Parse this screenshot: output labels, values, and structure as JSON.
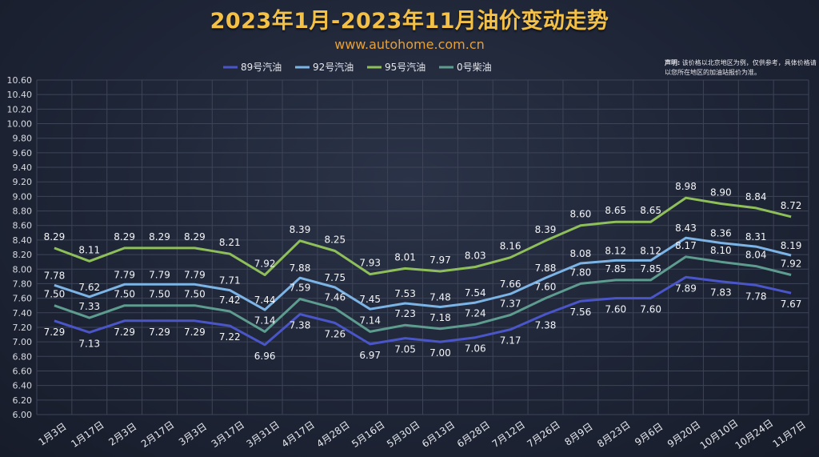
{
  "header": {
    "title": "2023年1月-2023年11月油价变动走势",
    "subtitle": "www.autohome.com.cn",
    "notice_label": "声明:",
    "notice_text": "该价格以北京地区为例，仅供参考，具体价格请以您所在地区的加油站报价为准。"
  },
  "chart_data": {
    "type": "line",
    "title": "2023年1月-2023年11月油价变动走势",
    "xlabel": "",
    "ylabel": "",
    "ylim": [
      6.0,
      10.6
    ],
    "ytick_step": 0.2,
    "grid": true,
    "legend_position": "top",
    "categories": [
      "1月3日",
      "1月17日",
      "2月3日",
      "2月17日",
      "3月3日",
      "3月17日",
      "3月31日",
      "4月17日",
      "4月28日",
      "5月16日",
      "5月30日",
      "6月13日",
      "6月28日",
      "7月12日",
      "7月26日",
      "8月9日",
      "8月23日",
      "9月6日",
      "9月20日",
      "10月10日",
      "10月24日",
      "11月7日"
    ],
    "series": [
      {
        "name": "89号汽油",
        "color": "#4a56c8",
        "values": [
          7.29,
          7.13,
          7.29,
          7.29,
          7.29,
          7.22,
          6.96,
          7.38,
          7.26,
          6.97,
          7.05,
          7.0,
          7.06,
          7.17,
          7.38,
          7.56,
          7.6,
          7.6,
          7.89,
          7.83,
          7.78,
          7.67
        ]
      },
      {
        "name": "92号汽油",
        "color": "#7cb4e6",
        "values": [
          7.78,
          7.62,
          7.79,
          7.79,
          7.79,
          7.71,
          7.44,
          7.88,
          7.75,
          7.45,
          7.53,
          7.48,
          7.54,
          7.66,
          7.88,
          8.08,
          8.12,
          8.12,
          8.43,
          8.36,
          8.31,
          8.19
        ]
      },
      {
        "name": "95号汽油",
        "color": "#8fbf5a",
        "values": [
          8.29,
          8.11,
          8.29,
          8.29,
          8.29,
          8.21,
          7.92,
          8.39,
          8.25,
          7.93,
          8.01,
          7.97,
          8.03,
          8.16,
          8.39,
          8.6,
          8.65,
          8.65,
          8.98,
          8.9,
          8.84,
          8.72
        ]
      },
      {
        "name": "0号柴油",
        "color": "#5e9c8f",
        "values": [
          7.5,
          7.33,
          7.5,
          7.5,
          7.5,
          7.42,
          7.14,
          7.59,
          7.46,
          7.14,
          7.23,
          7.18,
          7.24,
          7.37,
          7.6,
          7.8,
          7.85,
          7.85,
          8.17,
          8.1,
          8.04,
          7.92
        ]
      }
    ]
  }
}
